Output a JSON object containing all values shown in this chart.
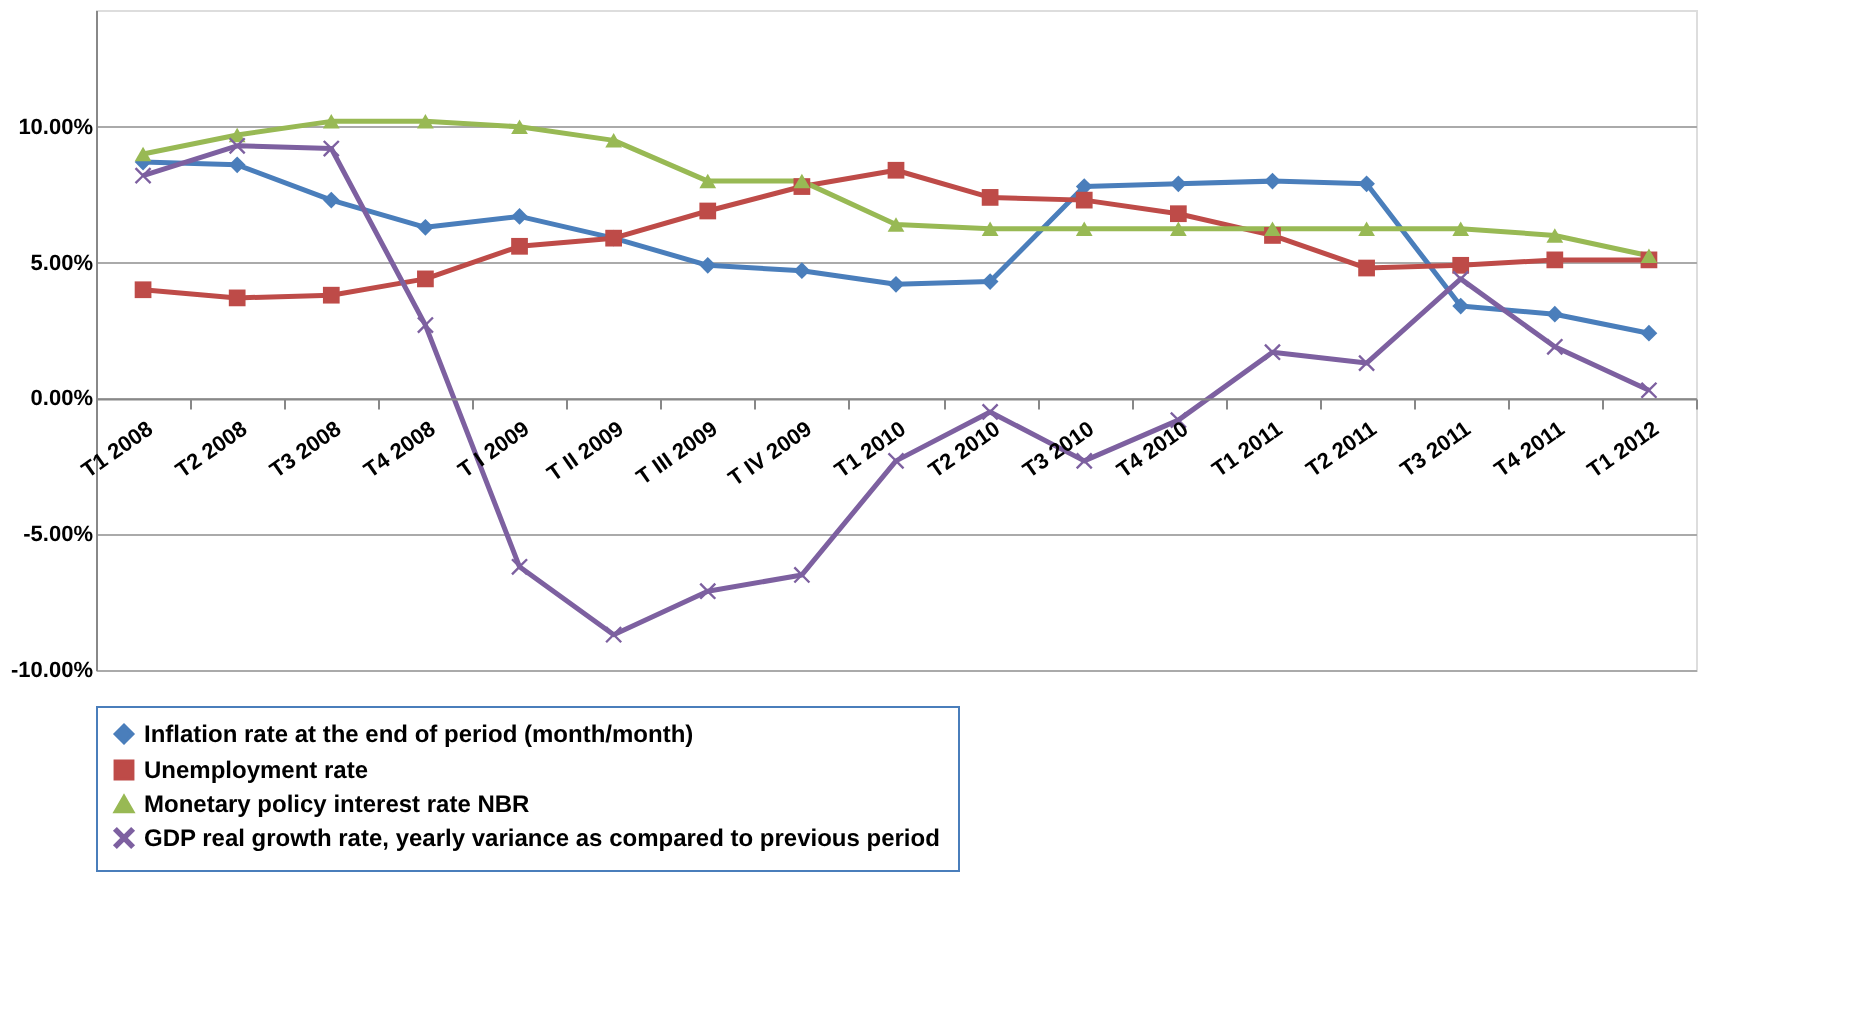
{
  "chart_data": {
    "type": "line",
    "categories": [
      "T1 2008",
      "T2 2008",
      "T3 2008",
      "T4 2008",
      "T I 2009",
      "T II 2009",
      "T III 2009",
      "T IV 2009",
      "T1 2010",
      "T2 2010",
      "T3 2010",
      "T4 2010",
      "T1 2011",
      "T2 2011",
      "T3 2011",
      "T4 2011",
      "T1 2012"
    ],
    "series": [
      {
        "name": "Inflation rate at the end of period (month/month)",
        "color": "#4a7ebb",
        "marker": "diamond",
        "values": [
          8.7,
          8.6,
          7.3,
          6.3,
          6.7,
          5.9,
          4.9,
          4.7,
          4.2,
          4.3,
          7.8,
          7.9,
          8.0,
          7.9,
          3.4,
          3.1,
          2.4
        ]
      },
      {
        "name": "Unemployment rate",
        "color": "#be4b48",
        "marker": "square",
        "values": [
          4.0,
          3.7,
          3.8,
          4.4,
          5.6,
          5.9,
          6.9,
          7.8,
          8.4,
          7.4,
          7.3,
          6.8,
          6.0,
          4.8,
          4.9,
          5.1,
          5.1
        ]
      },
      {
        "name": "Monetary policy interest rate NBR",
        "color": "#98b954",
        "marker": "triangle",
        "values": [
          9.0,
          9.7,
          10.2,
          10.2,
          10.0,
          9.5,
          8.0,
          8.0,
          6.4,
          6.25,
          6.25,
          6.25,
          6.25,
          6.25,
          6.25,
          6.0,
          5.25
        ]
      },
      {
        "name": "GDP real growth rate, yearly variance as compared to previous period",
        "color": "#7d60a0",
        "marker": "cross",
        "values": [
          8.2,
          9.3,
          9.2,
          2.7,
          -6.2,
          -8.7,
          -7.1,
          -6.5,
          -2.3,
          -0.5,
          -2.3,
          -0.8,
          1.7,
          1.3,
          4.4,
          1.9,
          0.3
        ]
      }
    ],
    "ylim": [
      -10,
      14.3
    ],
    "yticks": [
      {
        "value": -10,
        "label": "-10.00%"
      },
      {
        "value": -5,
        "label": "-5.00%"
      },
      {
        "value": 0,
        "label": "0.00%"
      },
      {
        "value": 5,
        "label": "5.00%"
      },
      {
        "value": 10,
        "label": "10.00%"
      }
    ],
    "grid": "y",
    "legend": "bottom",
    "line_style": "solid"
  }
}
